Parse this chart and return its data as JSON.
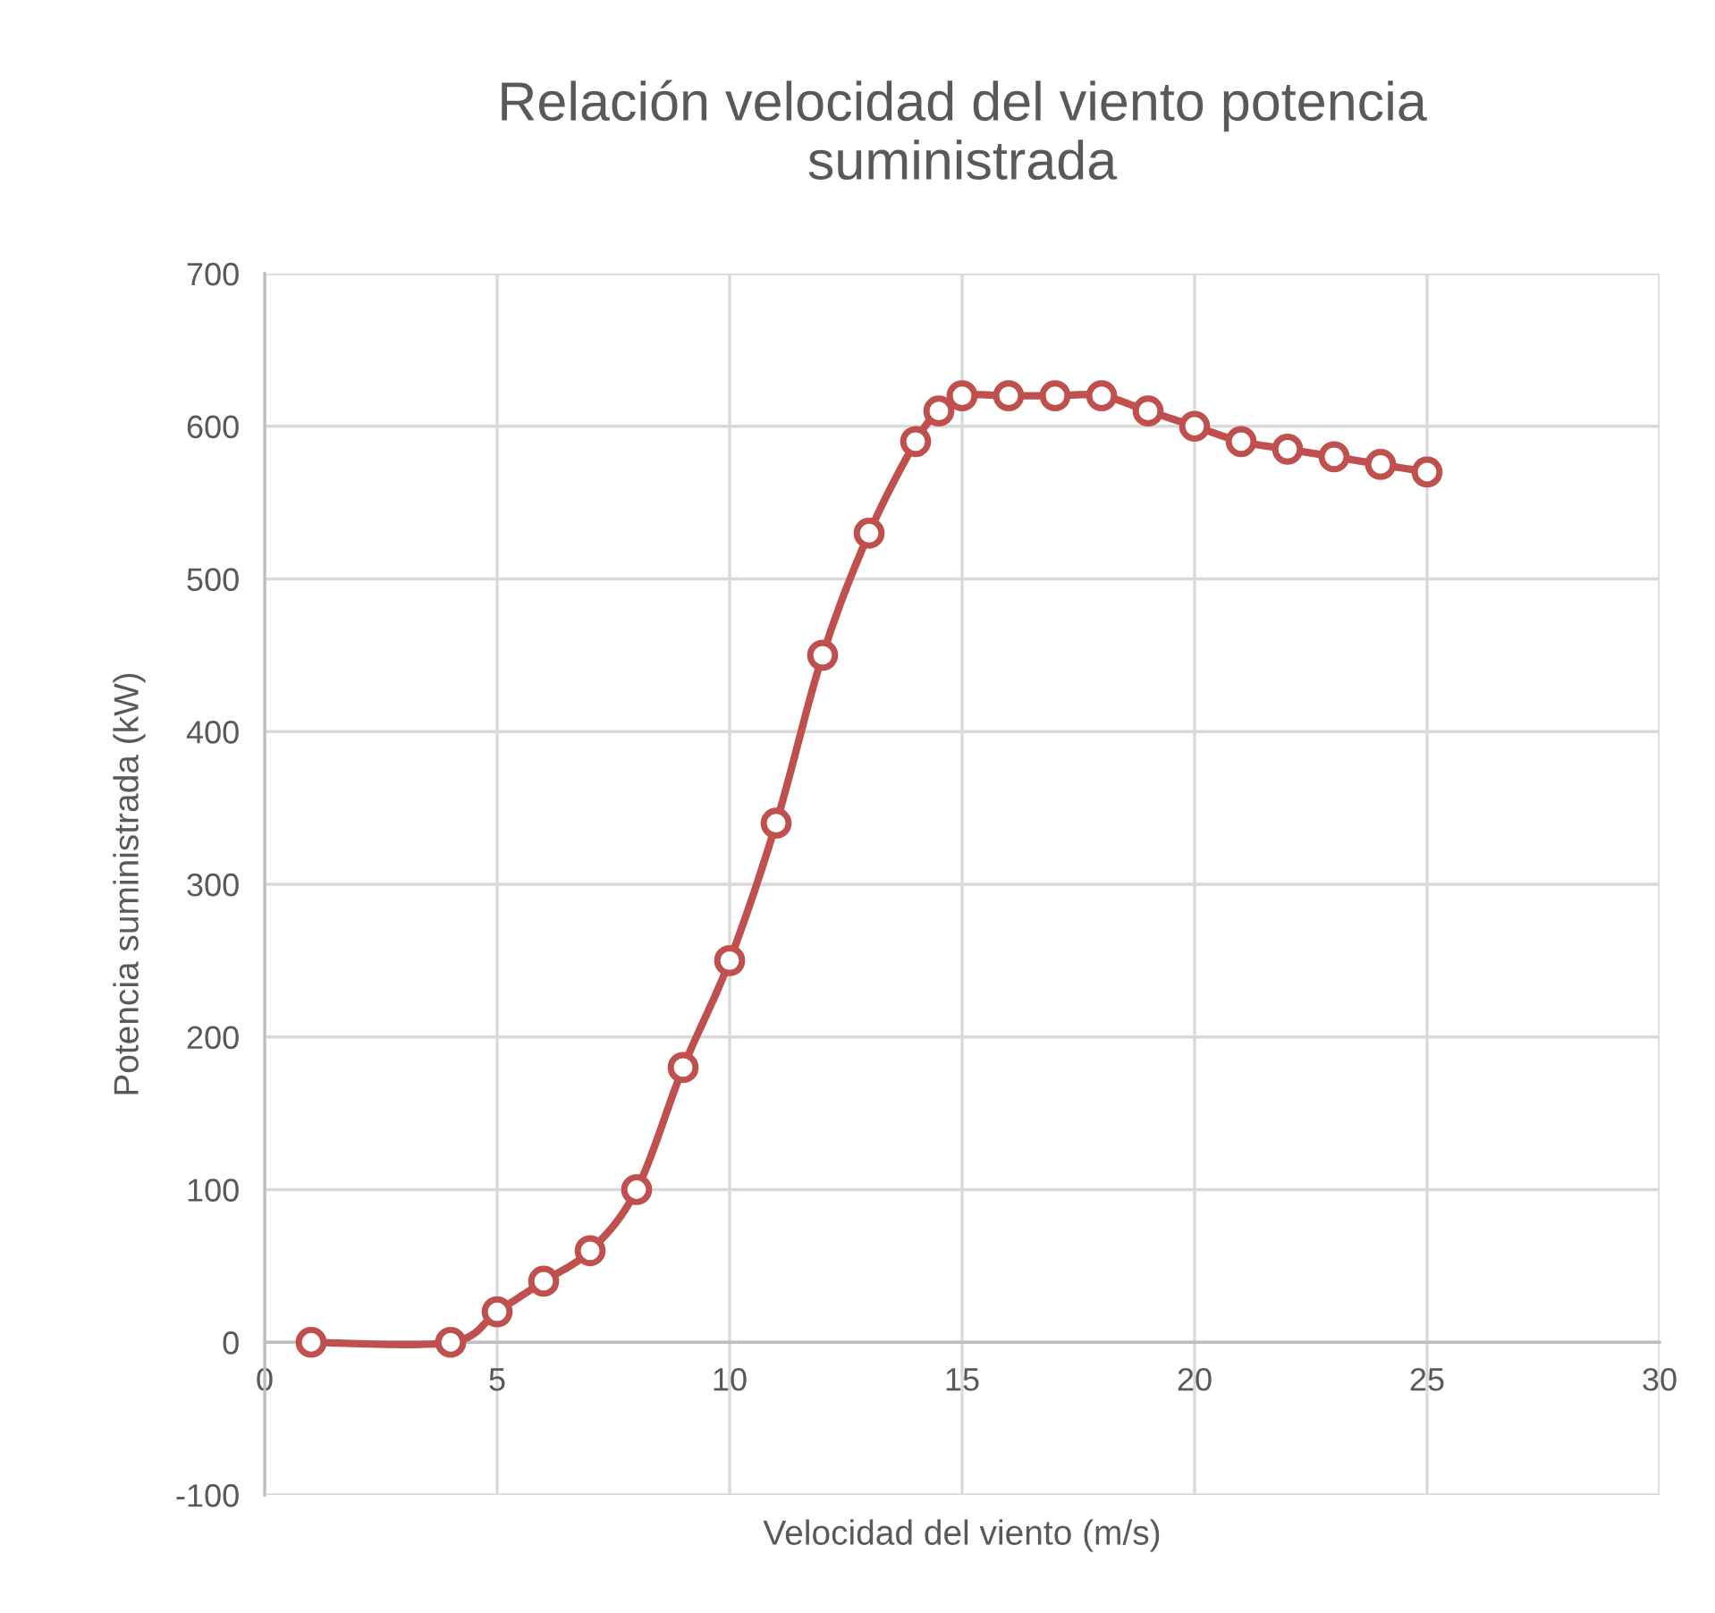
{
  "chart_data": {
    "type": "line",
    "title": "Relación velocidad del viento potencia\nsuministrada",
    "xlabel": "Velocidad del viento (m/s)",
    "ylabel": "Potencia suministrada (kW)",
    "x": [
      1,
      4,
      5,
      6,
      7,
      8,
      9,
      10,
      11,
      12,
      13,
      14,
      14.5,
      15,
      16,
      17,
      18,
      19,
      20,
      21,
      22,
      23,
      24,
      25
    ],
    "series": [
      {
        "color": "#c0504d",
        "values": [
          0,
          0,
          20,
          40,
          60,
          100,
          180,
          250,
          340,
          450,
          530,
          590,
          610,
          620,
          620,
          620,
          620,
          610,
          600,
          590,
          585,
          580,
          575,
          570
        ]
      }
    ],
    "xlim": [
      0,
      30
    ],
    "xticks": [
      0,
      5,
      10,
      15,
      20,
      25,
      30
    ],
    "ylim": [
      -100,
      700
    ],
    "yticks": [
      -100,
      0,
      100,
      200,
      300,
      400,
      500,
      600,
      700
    ],
    "grid": true,
    "marker": "circle",
    "line_style": "solid"
  }
}
